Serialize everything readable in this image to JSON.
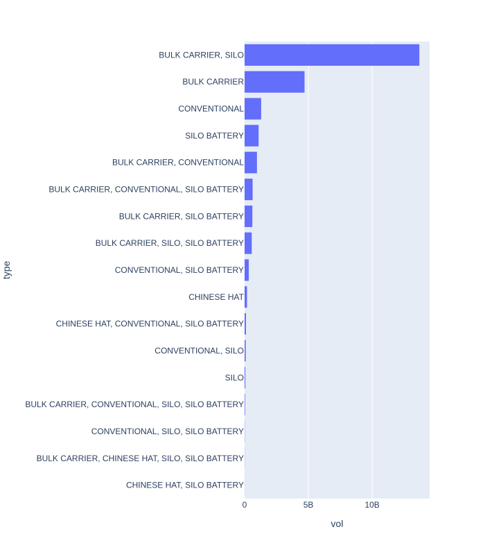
{
  "chart_data": {
    "type": "bar",
    "orientation": "horizontal",
    "title": "",
    "xlabel": "vol",
    "ylabel": "type",
    "xlim": [
      0,
      14500000000
    ],
    "xticks": [
      {
        "value": 0,
        "label": "0"
      },
      {
        "value": 5000000000,
        "label": "5B"
      },
      {
        "value": 10000000000,
        "label": "10B"
      }
    ],
    "grid": true,
    "bar_color": "#636efa",
    "plot_bg_color": "#e5ecf6",
    "categories": [
      "BULK CARRIER, SILO",
      "BULK CARRIER",
      "CONVENTIONAL",
      "SILO BATTERY",
      "BULK CARRIER, CONVENTIONAL",
      "BULK CARRIER, CONVENTIONAL, SILO BATTERY",
      "BULK CARRIER, SILO BATTERY",
      "BULK CARRIER, SILO, SILO BATTERY",
      "CONVENTIONAL, SILO BATTERY",
      "CHINESE HAT",
      "CHINESE HAT, CONVENTIONAL, SILO BATTERY",
      "CONVENTIONAL, SILO",
      "SILO",
      "BULK CARRIER, CONVENTIONAL, SILO, SILO BATTERY",
      "CONVENTIONAL, SILO, SILO BATTERY",
      "BULK CARRIER, CHINESE HAT, SILO, SILO BATTERY",
      "CHINESE HAT, SILO BATTERY"
    ],
    "values": [
      13700000000,
      4700000000,
      1300000000,
      1100000000,
      970000000,
      630000000,
      610000000,
      560000000,
      330000000,
      190000000,
      110000000,
      90000000,
      60000000,
      40000000,
      15000000,
      10000000,
      5000000
    ]
  }
}
